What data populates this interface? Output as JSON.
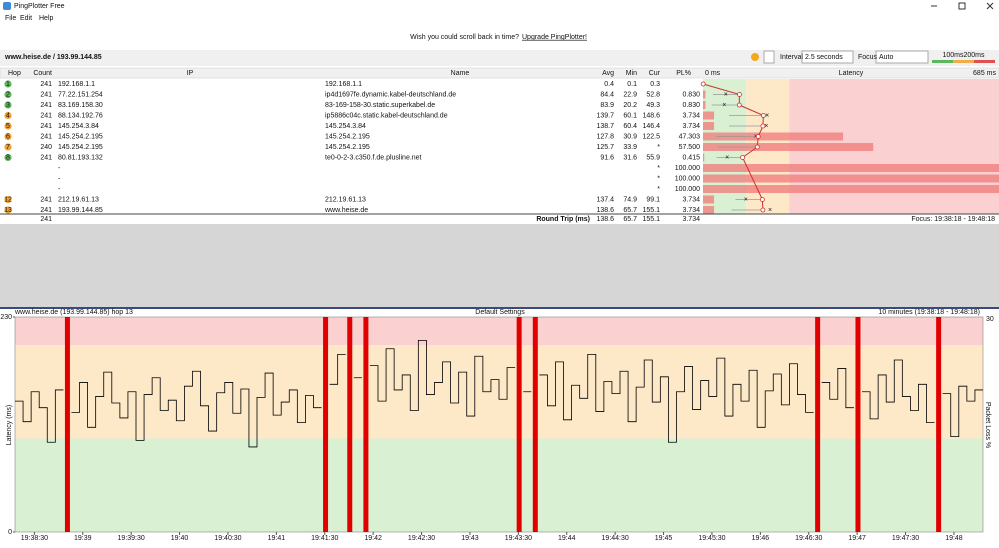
{
  "window": {
    "title": "PingPlotter Free",
    "menu": [
      "File",
      "Edit",
      "Help"
    ]
  },
  "banner": {
    "text": "Wish you could scroll back in time?",
    "link": "Upgrade PingPlotter!"
  },
  "toolbar": {
    "target": "www.heise.de / 193.99.144.85",
    "interval_label": "Interval",
    "interval": "2.5 seconds",
    "focus_label": "Focus",
    "focus": "Auto",
    "thresholds": [
      {
        "value": 100,
        "label": "100ms"
      },
      {
        "value": 200,
        "label": "200ms"
      }
    ]
  },
  "table": {
    "columns": [
      "Hop",
      "Count",
      "IP",
      "Name",
      "Avg",
      "Min",
      "Cur",
      "PL%",
      "Latency"
    ],
    "latency_ticks": [
      {
        "value": 0,
        "label": "0 ms"
      },
      {
        "value": 685,
        "label": "685 ms"
      }
    ],
    "rows": [
      {
        "hop": 1,
        "count": 241,
        "ip": "192.168.1.1",
        "name": "192.168.1.1",
        "avg": 0.4,
        "min": 0.1,
        "cur": 0.3,
        "pl": null
      },
      {
        "hop": 2,
        "count": 241,
        "ip": "77.22.151.254",
        "name": "ip4d1697fe.dynamic.kabel-deutschland.de",
        "avg": 84.4,
        "min": 22.9,
        "cur": 52.8,
        "pl": "0.830"
      },
      {
        "hop": 3,
        "count": 241,
        "ip": "83.169.158.30",
        "name": "83-169-158-30.static.superkabel.de",
        "avg": 83.9,
        "min": 20.2,
        "cur": 49.3,
        "pl": "0.830"
      },
      {
        "hop": 4,
        "count": 241,
        "ip": "88.134.192.76",
        "name": "ip5886c04c.static.kabel-deutschland.de",
        "avg": 139.7,
        "min": 60.1,
        "cur": 148.6,
        "pl": "3.734"
      },
      {
        "hop": 5,
        "count": 241,
        "ip": "145.254.3.84",
        "name": "145.254.3.84",
        "avg": 138.7,
        "min": 60.4,
        "cur": 146.4,
        "pl": "3.734"
      },
      {
        "hop": 6,
        "count": 241,
        "ip": "145.254.2.195",
        "name": "145.254.2.195",
        "avg": 127.8,
        "min": 30.9,
        "cur": 122.5,
        "pl": "47.303"
      },
      {
        "hop": 7,
        "count": 240,
        "ip": "145.254.2.195",
        "name": "145.254.2.195",
        "avg": 125.7,
        "min": 33.9,
        "cur": "*",
        "pl": "57.500"
      },
      {
        "hop": 8,
        "count": 241,
        "ip": "80.81.193.132",
        "name": "te0-0-2-3.c350.f.de.plusline.net",
        "avg": 91.6,
        "min": 31.6,
        "cur": 55.9,
        "pl": "0.415"
      },
      {
        "hop": null,
        "count": null,
        "ip": "-",
        "name": null,
        "avg": null,
        "min": null,
        "cur": "*",
        "pl": "100.000"
      },
      {
        "hop": null,
        "count": null,
        "ip": "-",
        "name": null,
        "avg": null,
        "min": null,
        "cur": "*",
        "pl": "100.000"
      },
      {
        "hop": null,
        "count": null,
        "ip": "-",
        "name": null,
        "avg": null,
        "min": null,
        "cur": "*",
        "pl": "100.000"
      },
      {
        "hop": 12,
        "count": 241,
        "ip": "212.19.61.13",
        "name": "212.19.61.13",
        "avg": 137.4,
        "min": 74.9,
        "cur": 99.1,
        "pl": "3.734"
      },
      {
        "hop": 13,
        "count": 241,
        "ip": "193.99.144.85",
        "name": "www.heise.de",
        "avg": 138.6,
        "min": 65.7,
        "cur": 155.1,
        "pl": "3.734"
      }
    ],
    "footer": {
      "count": 241,
      "label": "Round Trip (ms)",
      "avg": 138.6,
      "min": 65.7,
      "cur": 155.1,
      "pl": "3.734",
      "focus": "Focus: 19:38:18 - 19:48:18"
    }
  },
  "chart_data": {
    "type": "line",
    "title": "www.heise.de (193.99.144.85) hop 13",
    "subtitle": "Default Settings",
    "range_label": "10 minutes (19:38:18 - 19:48:18)",
    "ylabel": "Latency (ms)",
    "y2label": "Packet Loss %",
    "color": "#000000",
    "loss_color": "#e00000",
    "ylim": [
      0,
      230
    ],
    "yticks": [
      0,
      230
    ],
    "y2lim": [
      0,
      30
    ],
    "y2ticks": [
      30
    ],
    "xlim": [
      0,
      600
    ],
    "xticks": [
      {
        "value": 12,
        "label": "19:38:30"
      },
      {
        "value": 42,
        "label": "19:39"
      },
      {
        "value": 72,
        "label": "19:39:30"
      },
      {
        "value": 102,
        "label": "19:40"
      },
      {
        "value": 132,
        "label": "19:40:30"
      },
      {
        "value": 162,
        "label": "19:41"
      },
      {
        "value": 192,
        "label": "19:41:30"
      },
      {
        "value": 222,
        "label": "19:42"
      },
      {
        "value": 252,
        "label": "19:42:30"
      },
      {
        "value": 282,
        "label": "19:43"
      },
      {
        "value": 312,
        "label": "19:43:30"
      },
      {
        "value": 342,
        "label": "19:44"
      },
      {
        "value": 372,
        "label": "19:44:30"
      },
      {
        "value": 402,
        "label": "19:45"
      },
      {
        "value": 432,
        "label": "19:45:30"
      },
      {
        "value": 462,
        "label": "19:46"
      },
      {
        "value": 492,
        "label": "19:46:30"
      },
      {
        "value": 522,
        "label": "19:47"
      },
      {
        "value": 552,
        "label": "19:47:30"
      },
      {
        "value": 582,
        "label": "19:48"
      }
    ],
    "values": [
      140,
      118,
      150,
      133,
      96,
      152,
      null,
      128,
      160,
      112,
      145,
      171,
      138,
      122,
      150,
      98,
      147,
      165,
      130,
      141,
      119,
      156,
      172,
      135,
      108,
      149,
      160,
      127,
      153,
      91,
      144,
      170,
      125,
      139,
      152,
      117,
      146,
      133,
      null,
      158,
      190,
      null,
      165,
      null,
      178,
      140,
      196,
      152,
      168,
      130,
      205,
      147,
      160,
      182,
      138,
      171,
      124,
      188,
      150,
      163,
      142,
      176,
      null,
      150,
      null,
      168,
      135,
      182,
      120,
      157,
      143,
      190,
      129,
      161,
      148,
      172,
      118,
      155,
      184,
      139,
      166,
      96,
      150,
      177,
      131,
      162,
      145,
      186,
      124,
      158,
      140,
      173,
      112,
      151,
      169,
      136,
      180,
      147,
      128,
      null,
      160,
      142,
      175,
      133,
      null,
      150,
      121,
      168,
      139,
      184,
      145,
      130,
      158,
      117,
      null,
      148,
      102,
      156,
      140,
      152
    ]
  }
}
